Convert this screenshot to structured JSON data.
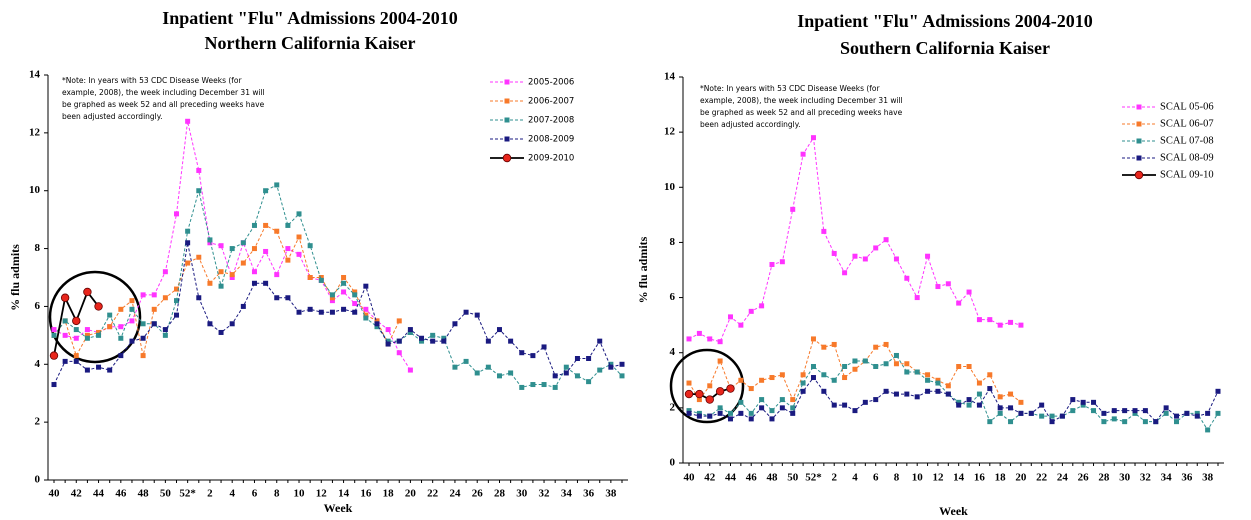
{
  "chart_data": [
    {
      "type": "line",
      "title": "Inpatient \"Flu\" Admissions 2004-2010",
      "subtitle": "Northern California Kaiser",
      "x_label": "Week",
      "y_label": "% flu admits",
      "note": [
        "*Note: In years with 53 CDC Disease Weeks (for",
        "example, 2008), the week including December 31 will",
        "be graphed as week 52 and all preceding weeks have",
        "been adjusted accordingly."
      ],
      "categories": [
        "40",
        null,
        "42",
        null,
        "44",
        null,
        "46",
        null,
        "48",
        null,
        "50",
        null,
        "52*",
        null,
        "2",
        null,
        "4",
        null,
        "6",
        null,
        "8",
        null,
        "10",
        null,
        "12",
        null,
        "14",
        null,
        "16",
        null,
        "18",
        null,
        "20",
        null,
        "22",
        null,
        "24",
        null,
        "26",
        null,
        "28",
        null,
        "30",
        null,
        "32",
        null,
        "34",
        null,
        "36",
        null,
        "38",
        null
      ],
      "ylim": [
        0,
        14
      ],
      "yticks": [
        0,
        2,
        4,
        6,
        8,
        10,
        12,
        14
      ],
      "legend": "upper right",
      "grid": false,
      "series": [
        {
          "name": "2005-2006",
          "color": "#ff33ff",
          "line_style": "dashed",
          "marker": "square",
          "values": [
            5.2,
            5.0,
            4.9,
            5.2,
            5.1,
            5.3,
            5.3,
            5.5,
            6.4,
            6.4,
            7.2,
            9.2,
            12.4,
            10.7,
            8.2,
            8.1,
            7.0,
            8.2,
            7.2,
            7.9,
            7.1,
            8.0,
            7.8,
            7.0,
            6.9,
            6.2,
            6.5,
            6.1,
            5.9,
            5.5,
            5.2,
            4.4,
            3.8,
            null,
            null,
            null,
            null,
            null,
            null,
            null,
            null,
            null,
            null,
            null,
            null,
            null,
            null,
            null,
            null,
            null,
            null,
            null
          ]
        },
        {
          "name": "2006-2007",
          "color": "#f7792a",
          "line_style": "dashed",
          "marker": "square",
          "values": [
            5.0,
            5.5,
            4.3,
            5.0,
            5.1,
            5.3,
            5.9,
            6.2,
            4.3,
            5.9,
            6.3,
            6.6,
            7.5,
            7.7,
            6.8,
            7.2,
            7.1,
            7.5,
            8.0,
            8.8,
            8.6,
            7.6,
            8.4,
            7.0,
            7.0,
            6.3,
            7.0,
            6.5,
            5.7,
            5.5,
            4.7,
            5.5,
            null,
            null,
            null,
            null,
            null,
            null,
            null,
            null,
            null,
            null,
            null,
            null,
            null,
            null,
            null,
            null,
            null,
            null,
            null,
            null
          ]
        },
        {
          "name": "2007-2008",
          "color": "#2f8f8f",
          "line_style": "dashed",
          "marker": "square",
          "values": [
            5.0,
            5.5,
            5.2,
            4.9,
            5.0,
            5.7,
            4.9,
            5.9,
            5.4,
            5.4,
            5.0,
            6.2,
            8.6,
            10.0,
            8.3,
            6.7,
            8.0,
            8.2,
            8.8,
            10.0,
            10.2,
            8.8,
            9.2,
            8.1,
            6.9,
            6.4,
            6.8,
            6.4,
            5.6,
            5.3,
            4.8,
            4.8,
            5.1,
            4.8,
            5.0,
            4.9,
            3.9,
            4.1,
            3.7,
            3.9,
            3.6,
            3.7,
            3.2,
            3.3,
            3.3,
            3.2,
            3.9,
            3.6,
            3.4,
            3.8,
            4.0,
            3.6
          ]
        },
        {
          "name": "2008-2009",
          "color": "#1a1a80",
          "line_style": "dashed",
          "marker": "square",
          "values": [
            3.3,
            4.1,
            4.1,
            3.8,
            3.9,
            3.8,
            4.3,
            4.8,
            4.9,
            5.4,
            5.2,
            5.7,
            8.2,
            6.3,
            5.4,
            5.1,
            5.4,
            6.0,
            6.8,
            6.8,
            6.3,
            6.3,
            5.8,
            5.9,
            5.8,
            5.8,
            5.9,
            5.8,
            6.7,
            5.4,
            4.7,
            4.8,
            5.2,
            4.9,
            4.8,
            4.8,
            5.4,
            5.8,
            5.7,
            4.8,
            5.2,
            4.8,
            4.4,
            4.3,
            4.6,
            3.6,
            3.7,
            4.2,
            4.2,
            4.8,
            3.9,
            4.0
          ]
        },
        {
          "name": "2009-2010",
          "color": "#000000",
          "marker_color": "#e8261c",
          "line_style": "solid",
          "marker": "circle",
          "values": [
            4.3,
            6.3,
            5.5,
            6.5,
            6.0,
            null,
            null,
            null,
            null,
            null,
            null,
            null,
            null,
            null,
            null,
            null,
            null,
            null,
            null,
            null,
            null,
            null,
            null,
            null,
            null,
            null,
            null,
            null,
            null,
            null,
            null,
            null,
            null,
            null,
            null,
            null,
            null,
            null,
            null,
            null,
            null,
            null,
            null,
            null,
            null,
            null,
            null,
            null,
            null,
            null,
            null,
            null
          ]
        }
      ]
    },
    {
      "type": "line",
      "title": "Inpatient \"Flu\" Admissions 2004-2010",
      "subtitle": "Southern California Kaiser",
      "x_label": "Week",
      "y_label": "% flu admits",
      "note": [
        "*Note: In years with 53 CDC Disease Weeks (for",
        "example, 2008), the week including December 31 will",
        "be graphed as week 52 and all preceding weeks have",
        "been adjusted accordingly."
      ],
      "categories": [
        "40",
        null,
        "42",
        null,
        "44",
        null,
        "46",
        null,
        "48",
        null,
        "50",
        null,
        "52*",
        null,
        "2",
        null,
        "4",
        null,
        "6",
        null,
        "8",
        null,
        "10",
        null,
        "12",
        null,
        "14",
        null,
        "16",
        null,
        "18",
        null,
        "20",
        null,
        "22",
        null,
        "24",
        null,
        "26",
        null,
        "28",
        null,
        "30",
        null,
        "32",
        null,
        "34",
        null,
        "36",
        null,
        "38",
        null
      ],
      "ylim": [
        0,
        14
      ],
      "yticks": [
        0,
        2,
        4,
        6,
        8,
        10,
        12,
        14
      ],
      "legend": "upper right",
      "grid": false,
      "series": [
        {
          "name": "SCAL 05-06",
          "color": "#ff33ff",
          "line_style": "dashed",
          "marker": "square",
          "values": [
            4.5,
            4.7,
            4.5,
            4.4,
            5.3,
            5.0,
            5.5,
            5.7,
            7.2,
            7.3,
            9.2,
            11.2,
            11.8,
            8.4,
            7.6,
            6.9,
            7.5,
            7.4,
            7.8,
            8.1,
            7.4,
            6.7,
            6.0,
            7.5,
            6.4,
            6.5,
            5.8,
            6.2,
            5.2,
            5.2,
            5.0,
            5.1,
            5.0,
            null,
            null,
            null,
            null,
            null,
            null,
            null,
            null,
            null,
            null,
            null,
            null,
            null,
            null,
            null,
            null,
            null,
            null,
            null
          ]
        },
        {
          "name": "SCAL 06-07",
          "color": "#f7792a",
          "line_style": "dashed",
          "marker": "square",
          "values": [
            2.9,
            2.3,
            2.8,
            3.7,
            2.7,
            3.0,
            2.7,
            3.0,
            3.1,
            3.2,
            2.3,
            3.2,
            4.5,
            4.2,
            4.3,
            3.1,
            3.4,
            3.7,
            4.2,
            4.3,
            3.6,
            3.6,
            3.3,
            3.2,
            3.0,
            2.8,
            3.5,
            3.5,
            2.9,
            3.2,
            2.4,
            2.5,
            2.2,
            null,
            null,
            null,
            null,
            null,
            null,
            null,
            null,
            null,
            null,
            null,
            null,
            null,
            null,
            null,
            null,
            null,
            null,
            null
          ]
        },
        {
          "name": "SCAL 07-08",
          "color": "#2f8f8f",
          "line_style": "dashed",
          "marker": "square",
          "values": [
            1.9,
            1.8,
            1.7,
            2.0,
            1.8,
            2.2,
            1.8,
            2.3,
            1.9,
            2.3,
            2.0,
            2.9,
            3.5,
            3.2,
            3.0,
            3.5,
            3.7,
            3.7,
            3.5,
            3.6,
            3.9,
            3.3,
            3.3,
            3.0,
            2.9,
            2.5,
            2.2,
            2.1,
            2.5,
            1.5,
            1.8,
            1.5,
            1.8,
            1.8,
            1.7,
            1.7,
            1.7,
            1.9,
            2.1,
            1.9,
            1.5,
            1.6,
            1.5,
            1.8,
            1.5,
            1.5,
            1.8,
            1.5,
            1.8,
            1.8,
            1.2,
            1.8
          ]
        },
        {
          "name": "SCAL 08-09",
          "color": "#1a1a80",
          "line_style": "dashed",
          "marker": "square",
          "values": [
            1.8,
            1.7,
            1.7,
            1.8,
            1.6,
            1.8,
            1.6,
            2.0,
            1.6,
            2.0,
            1.8,
            2.6,
            3.1,
            2.6,
            2.1,
            2.1,
            1.9,
            2.2,
            2.3,
            2.6,
            2.5,
            2.5,
            2.4,
            2.6,
            2.6,
            2.5,
            2.1,
            2.3,
            2.1,
            2.7,
            2.0,
            2.0,
            1.8,
            1.8,
            2.1,
            1.5,
            1.7,
            2.3,
            2.2,
            2.2,
            1.8,
            1.9,
            1.9,
            1.9,
            1.9,
            1.5,
            2.0,
            1.7,
            1.8,
            1.7,
            1.8,
            2.6
          ]
        },
        {
          "name": "SCAL 09-10",
          "color": "#000000",
          "marker_color": "#e8261c",
          "line_style": "solid",
          "marker": "circle",
          "values": [
            2.5,
            2.5,
            2.3,
            2.6,
            2.7,
            null,
            null,
            null,
            null,
            null,
            null,
            null,
            null,
            null,
            null,
            null,
            null,
            null,
            null,
            null,
            null,
            null,
            null,
            null,
            null,
            null,
            null,
            null,
            null,
            null,
            null,
            null,
            null,
            null,
            null,
            null,
            null,
            null,
            null,
            null,
            null,
            null,
            null,
            null,
            null,
            null,
            null,
            null,
            null,
            null,
            null,
            null
          ]
        }
      ]
    }
  ]
}
